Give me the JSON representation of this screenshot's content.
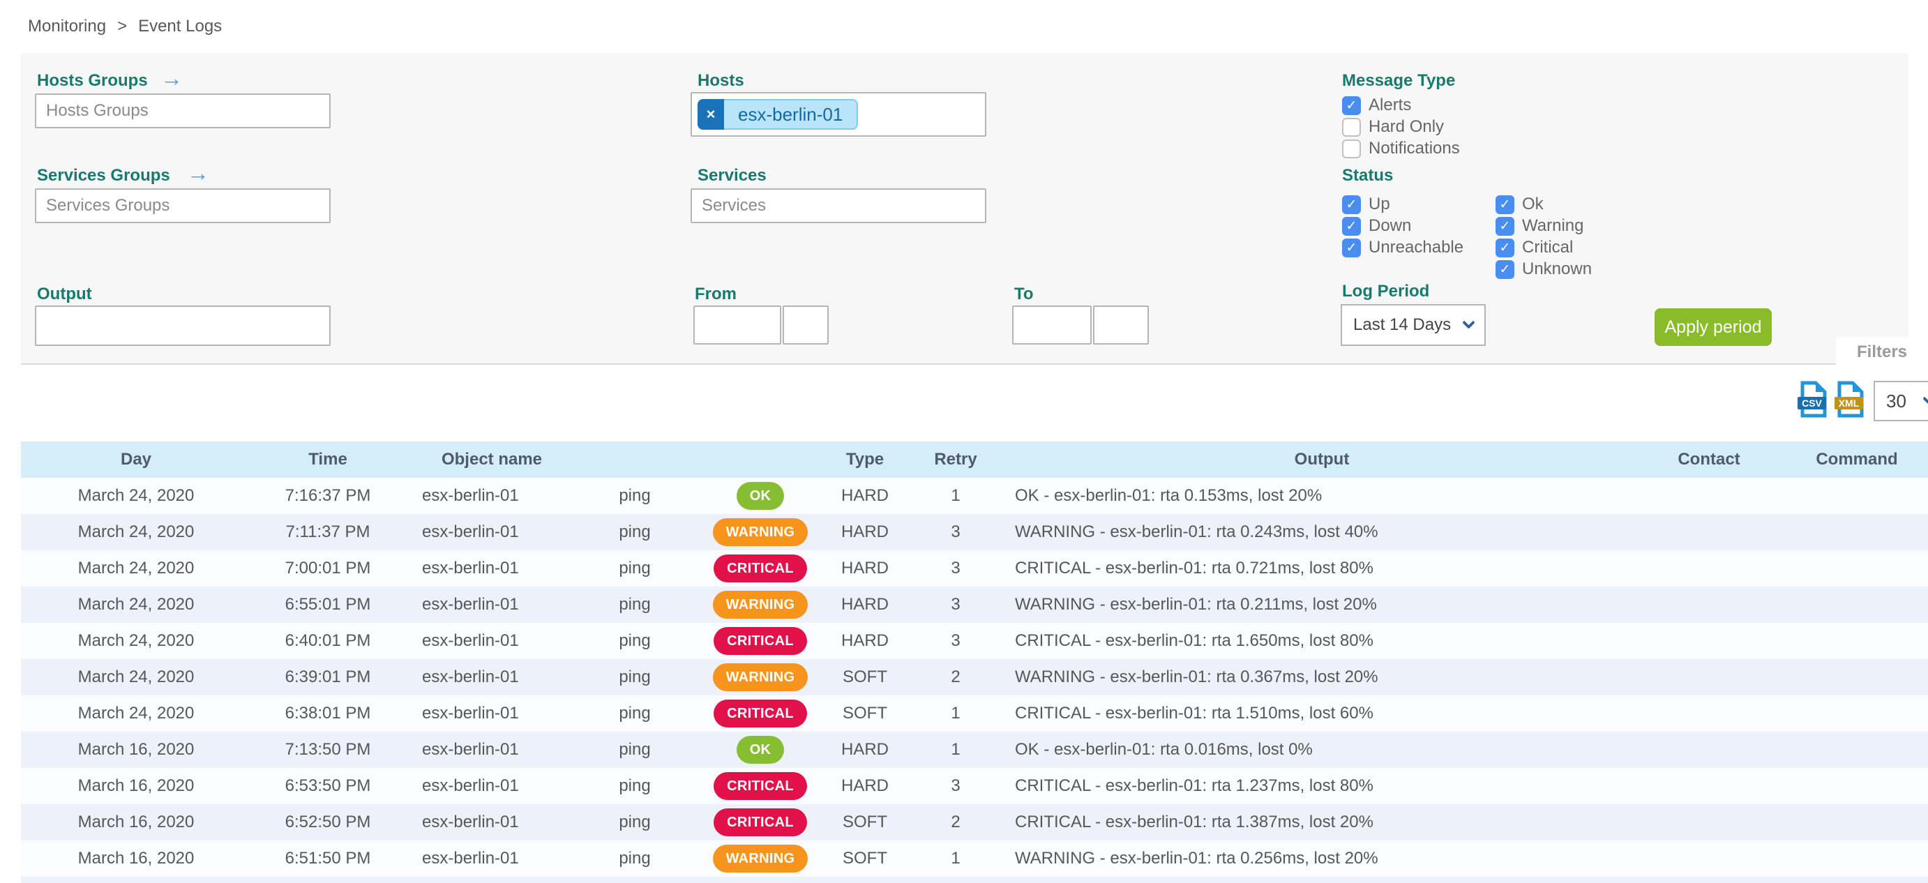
{
  "breadcrumb": {
    "separator": ">",
    "items": [
      "Monitoring",
      "Event Logs"
    ]
  },
  "filters": {
    "tab_label": "Filters",
    "hosts_groups": {
      "label": "Hosts Groups",
      "placeholder": "Hosts Groups",
      "value": ""
    },
    "services_groups": {
      "label": "Services Groups",
      "placeholder": "Services Groups",
      "value": ""
    },
    "hosts": {
      "label": "Hosts",
      "chips": [
        "esx-berlin-01"
      ]
    },
    "services": {
      "label": "Services",
      "placeholder": "Services",
      "value": ""
    },
    "message_type": {
      "label": "Message Type",
      "options": [
        {
          "label": "Alerts",
          "checked": true
        },
        {
          "label": "Hard Only",
          "checked": false
        },
        {
          "label": "Notifications",
          "checked": false
        }
      ]
    },
    "status": {
      "label": "Status",
      "host_options": [
        {
          "label": "Up",
          "checked": true
        },
        {
          "label": "Down",
          "checked": true
        },
        {
          "label": "Unreachable",
          "checked": true
        }
      ],
      "service_options": [
        {
          "label": "Ok",
          "checked": true
        },
        {
          "label": "Warning",
          "checked": true
        },
        {
          "label": "Critical",
          "checked": true
        },
        {
          "label": "Unknown",
          "checked": true
        }
      ]
    },
    "output": {
      "label": "Output",
      "value": ""
    },
    "from": {
      "label": "From",
      "date_value": "",
      "time_value": ""
    },
    "to": {
      "label": "To",
      "date_value": "",
      "time_value": ""
    },
    "log_period": {
      "label": "Log Period",
      "selected": "Last 14 Days"
    },
    "apply_button_label": "Apply period"
  },
  "toolbar": {
    "export_csv": "CSV",
    "export_xml": "XML",
    "page_size": "30"
  },
  "table": {
    "columns": [
      {
        "key": "day",
        "label": "Day"
      },
      {
        "key": "time",
        "label": "Time"
      },
      {
        "key": "object",
        "label": "Object name"
      },
      {
        "key": "service",
        "label": ""
      },
      {
        "key": "status",
        "label": ""
      },
      {
        "key": "type",
        "label": "Type"
      },
      {
        "key": "retry",
        "label": "Retry"
      },
      {
        "key": "output",
        "label": "Output"
      },
      {
        "key": "contact",
        "label": "Contact"
      },
      {
        "key": "command",
        "label": "Command"
      }
    ],
    "rows": [
      {
        "day": "March 24, 2020",
        "time": "7:16:37 PM",
        "object": "esx-berlin-01",
        "service": "ping",
        "status": "OK",
        "type": "HARD",
        "retry": "1",
        "output": "OK - esx-berlin-01: rta 0.153ms, lost 20%",
        "contact": "",
        "command": ""
      },
      {
        "day": "March 24, 2020",
        "time": "7:11:37 PM",
        "object": "esx-berlin-01",
        "service": "ping",
        "status": "WARNING",
        "type": "HARD",
        "retry": "3",
        "output": "WARNING - esx-berlin-01: rta 0.243ms, lost 40%",
        "contact": "",
        "command": ""
      },
      {
        "day": "March 24, 2020",
        "time": "7:00:01 PM",
        "object": "esx-berlin-01",
        "service": "ping",
        "status": "CRITICAL",
        "type": "HARD",
        "retry": "3",
        "output": "CRITICAL - esx-berlin-01: rta 0.721ms, lost 80%",
        "contact": "",
        "command": ""
      },
      {
        "day": "March 24, 2020",
        "time": "6:55:01 PM",
        "object": "esx-berlin-01",
        "service": "ping",
        "status": "WARNING",
        "type": "HARD",
        "retry": "3",
        "output": "WARNING - esx-berlin-01: rta 0.211ms, lost 20%",
        "contact": "",
        "command": ""
      },
      {
        "day": "March 24, 2020",
        "time": "6:40:01 PM",
        "object": "esx-berlin-01",
        "service": "ping",
        "status": "CRITICAL",
        "type": "HARD",
        "retry": "3",
        "output": "CRITICAL - esx-berlin-01: rta 1.650ms, lost 80%",
        "contact": "",
        "command": ""
      },
      {
        "day": "March 24, 2020",
        "time": "6:39:01 PM",
        "object": "esx-berlin-01",
        "service": "ping",
        "status": "WARNING",
        "type": "SOFT",
        "retry": "2",
        "output": "WARNING - esx-berlin-01: rta 0.367ms, lost 20%",
        "contact": "",
        "command": ""
      },
      {
        "day": "March 24, 2020",
        "time": "6:38:01 PM",
        "object": "esx-berlin-01",
        "service": "ping",
        "status": "CRITICAL",
        "type": "SOFT",
        "retry": "1",
        "output": "CRITICAL - esx-berlin-01: rta 1.510ms, lost 60%",
        "contact": "",
        "command": ""
      },
      {
        "day": "March 16, 2020",
        "time": "7:13:50 PM",
        "object": "esx-berlin-01",
        "service": "ping",
        "status": "OK",
        "type": "HARD",
        "retry": "1",
        "output": "OK - esx-berlin-01: rta 0.016ms, lost 0%",
        "contact": "",
        "command": ""
      },
      {
        "day": "March 16, 2020",
        "time": "6:53:50 PM",
        "object": "esx-berlin-01",
        "service": "ping",
        "status": "CRITICAL",
        "type": "HARD",
        "retry": "3",
        "output": "CRITICAL - esx-berlin-01: rta 1.237ms, lost 80%",
        "contact": "",
        "command": ""
      },
      {
        "day": "March 16, 2020",
        "time": "6:52:50 PM",
        "object": "esx-berlin-01",
        "service": "ping",
        "status": "CRITICAL",
        "type": "SOFT",
        "retry": "2",
        "output": "CRITICAL - esx-berlin-01: rta 1.387ms, lost 20%",
        "contact": "",
        "command": ""
      },
      {
        "day": "March 16, 2020",
        "time": "6:51:50 PM",
        "object": "esx-berlin-01",
        "service": "ping",
        "status": "WARNING",
        "type": "SOFT",
        "retry": "1",
        "output": "WARNING - esx-berlin-01: rta 0.256ms, lost 20%",
        "contact": "",
        "command": ""
      }
    ]
  },
  "colors": {
    "accent_teal": "#187a6d",
    "link_blue": "#459ff0",
    "checkbox_blue": "#4a8df0",
    "chip_bg": "#b9e5fb",
    "chip_border": "#7ecbf2",
    "chip_x_bg": "#1b72b8",
    "chip_text": "#1668a5",
    "ok_green": "#87bd30",
    "warning_orange": "#f7941e",
    "critical_red": "#e3114a",
    "apply_green": "#8abc2a",
    "table_header_bg": "#d5edf9",
    "row_alt_bg": "#edf1fa"
  }
}
